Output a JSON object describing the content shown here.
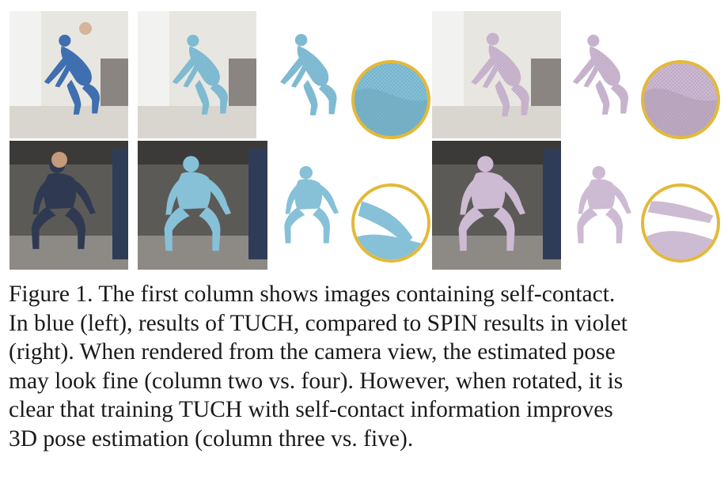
{
  "figure": {
    "caption_lines": [
      "Figure 1. The first column shows images containing self-contact.",
      "In blue (left), results of TUCH, compared to SPIN results in violet",
      "(right). When rendered from the camera view, the estimated pose",
      "may look fine (column two vs. four). However, when rotated, it is",
      "clear that training TUCH with self-contact information improves",
      "3D pose estimation (column three vs. five)."
    ]
  },
  "colors": {
    "tuch_blue": "#86c1d8",
    "spin_violet": "#c9b6cf",
    "zoom_ring": "#e3b93a",
    "photo_dark": "#2a2a2a"
  }
}
